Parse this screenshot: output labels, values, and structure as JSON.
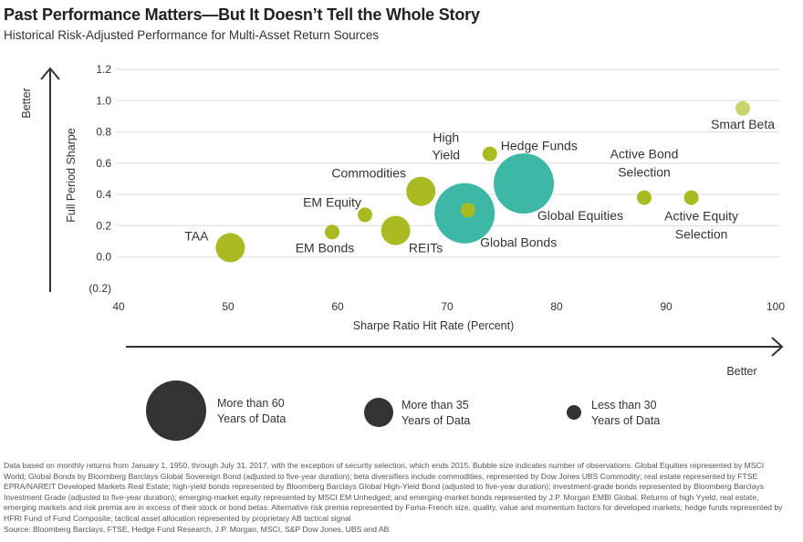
{
  "title": "Past Performance Matters—But It Doesn’t Tell the Whole Story",
  "subtitle": "Historical Risk-Adjusted Performance for Multi-Asset Return Sources",
  "colors": {
    "lime": "#aabb22",
    "teal": "#3eb8a6",
    "light_lime": "#c6d46a",
    "dark": "#333333",
    "grid": "#dddddd"
  },
  "chart_data": {
    "type": "scatter",
    "xlabel": "Sharpe Ratio Hit Rate (Percent)",
    "ylabel": "Full Period Sharpe",
    "xlim": [
      40,
      100
    ],
    "ylim": [
      -0.2,
      1.2
    ],
    "x_ticks": [
      "40",
      "50",
      "60",
      "70",
      "80",
      "90",
      "100"
    ],
    "y_ticks": [
      "1.2",
      "1.0",
      "0.8",
      "0.6",
      "0.4",
      "0.2",
      "0.0",
      "(0.2)"
    ],
    "grid": "horizontal",
    "better_y": "Better",
    "better_x": "Better",
    "points": [
      {
        "name": "TAA",
        "x": 50.2,
        "y": 0.06,
        "size": "medium",
        "color": "lime"
      },
      {
        "name": "EM Bonds",
        "x": 59.5,
        "y": 0.16,
        "size": "small",
        "color": "lime"
      },
      {
        "name": "EM Equity",
        "x": 62.5,
        "y": 0.27,
        "size": "small",
        "color": "lime"
      },
      {
        "name": "REITs",
        "x": 65.3,
        "y": 0.17,
        "size": "medium",
        "color": "lime"
      },
      {
        "name": "Commodities",
        "x": 67.6,
        "y": 0.42,
        "size": "medium",
        "color": "lime"
      },
      {
        "name": "Global Bonds",
        "x": 71.6,
        "y": 0.28,
        "size": "large",
        "color": "teal"
      },
      {
        "name": "High Yield",
        "x": 71.9,
        "y": 0.3,
        "size": "small",
        "color": "lime"
      },
      {
        "name": "Hedge Funds",
        "x": 73.9,
        "y": 0.66,
        "size": "small",
        "color": "lime"
      },
      {
        "name": "Global Equities",
        "x": 77.0,
        "y": 0.47,
        "size": "large",
        "color": "teal"
      },
      {
        "name": "Active Bond Selection",
        "x": 88.0,
        "y": 0.38,
        "size": "small",
        "color": "lime"
      },
      {
        "name": "Active Equity Selection",
        "x": 92.3,
        "y": 0.38,
        "size": "small",
        "color": "lime"
      },
      {
        "name": "Smart Beta",
        "x": 97.0,
        "y": 0.95,
        "size": "small",
        "color": "light_lime"
      }
    ],
    "legend": [
      {
        "size": "large",
        "line1": "More than 60",
        "line2": "Years of Data"
      },
      {
        "size": "medium",
        "line1": "More than 35",
        "line2": "Years of Data"
      },
      {
        "size": "small",
        "line1": "Less than  30",
        "line2": "Years of Data"
      }
    ]
  },
  "notes": {
    "line1": "Data based on monthly returns from January 1, 1950, through July 31, 2017, with the exception of security selection, which ends 2015. Bubble size indicates number of observations. Global Equities represented by MSCI",
    "line2": "World; Global Bonds by Bloomberg Barclays Global Sovereign Bond (adjusted to five-year duration);  beta diversifiers include commodities, represented by Dow Jones UBS Commodity; real estate represented by FTSE",
    "line3": "EPRA/NAREIT Developed Markets Real Estate; high-yield bonds represented by Bloomberg Barclays Global High-Yield Bond (adjusted to five-year duration); investment-grade bonds represented by Bloomberg Barclays",
    "line4": "Investment Grade (adjusted to five-year duration); emerging-market equity represented by MSCI EM Unhedged; and emerging-market bonds represented by J.P. Morgan EMBI Global.  Returns of high Yyeld, real estate,",
    "line5": "emerging markets and risk premia are in excess of their stock or bond betas. Alternative risk premia represented by Fama-French size, quality, value and momentum factors for developed markets; hedge funds represented by",
    "line6": "HFRI Fund of Fund Composite;  tactical asset allocation represented by proprietary AB tactical signal",
    "source": "Source: Bloomberg Barclays, FTSE, Hedge Fund Research, J.P. Morgan, MSCI, S&P Dow Jones, UBS and AB"
  }
}
